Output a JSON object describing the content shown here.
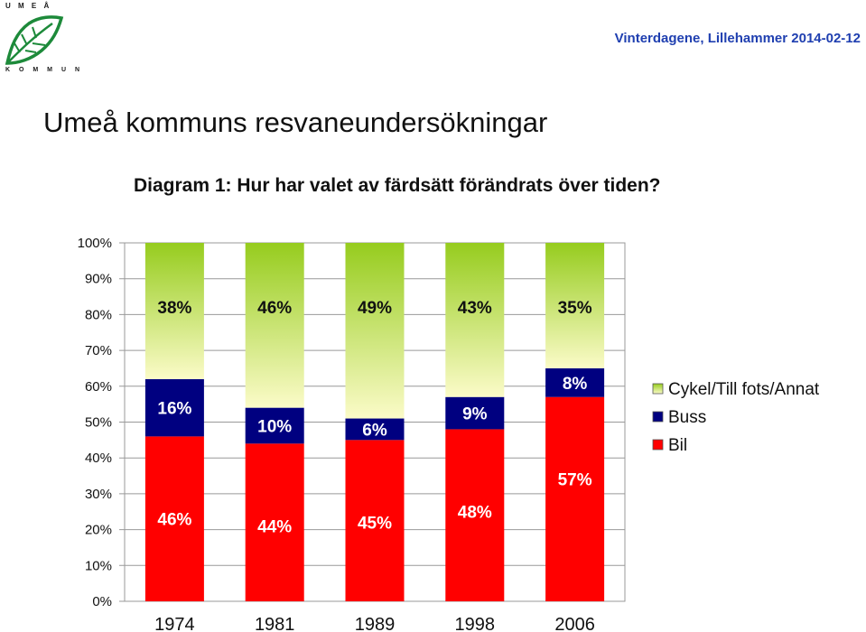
{
  "logo": {
    "top_text": "U M E Å",
    "bottom_text": "K O M M U N",
    "icon": "birch-leaf-icon"
  },
  "header": {
    "event_text": "Vinterdagene, Lillehammer 2014-02-12"
  },
  "page_title": "Umeå kommuns resvaneundersökningar",
  "chart_data": {
    "type": "bar",
    "stacked": true,
    "percent": true,
    "title": "Diagram 1: Hur har valet av färdsätt förändrats över tiden?",
    "xlabel": "",
    "ylabel": "",
    "ylim": [
      0,
      100
    ],
    "y_ticks": [
      "0%",
      "10%",
      "20%",
      "30%",
      "40%",
      "50%",
      "60%",
      "70%",
      "80%",
      "90%",
      "100%"
    ],
    "categories": [
      "1974",
      "1981",
      "1989",
      "1998",
      "2006"
    ],
    "series": [
      {
        "name": "Bil",
        "values": [
          46,
          44,
          45,
          48,
          57
        ],
        "labels": [
          "46%",
          "44%",
          "45%",
          "48%",
          "57%"
        ],
        "color": "#ff0000"
      },
      {
        "name": "Buss",
        "values": [
          16,
          10,
          6,
          9,
          8
        ],
        "labels": [
          "16%",
          "10%",
          "6%",
          "9%",
          "8%"
        ],
        "color": "#000080"
      },
      {
        "name": "Cykel/Till fots/Annat",
        "values": [
          38,
          46,
          49,
          43,
          35
        ],
        "labels": [
          "38%",
          "46%",
          "49%",
          "43%",
          "35%"
        ],
        "color": "#a8d22a"
      }
    ],
    "legend": {
      "placement": "right",
      "order": [
        "Cykel/Till fots/Annat",
        "Buss",
        "Bil"
      ]
    },
    "grid": true
  }
}
